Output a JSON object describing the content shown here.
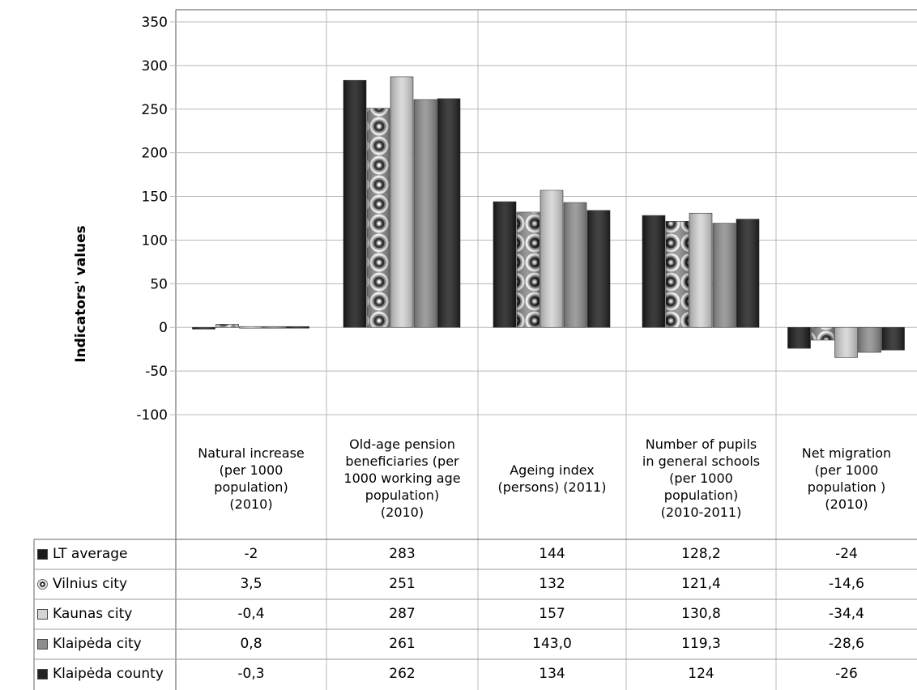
{
  "chart_data": {
    "type": "bar",
    "ylabel": "Indicators' values",
    "ylim": [
      -100,
      350
    ],
    "yticks": [
      350,
      300,
      250,
      200,
      150,
      100,
      50,
      0,
      -50,
      -100
    ],
    "grid": true,
    "legend": "table-below",
    "categories": [
      "Natural increase\n(per 1000\npopulation)\n(2010)",
      "Old-age pension\nbeneficiaries (per\n1000 working age\npopulation)\n(2010)",
      "Ageing index\n(persons) (2011)",
      "Number of pupils\nin general schools\n(per 1000\npopulation)\n(2010-2011)",
      "Net migration\n(per 1000\npopulation )\n(2010)"
    ],
    "series": [
      {
        "name": "LT average",
        "color": "#1a1a1a",
        "values": [
          -2,
          283,
          144,
          128.2,
          -24
        ],
        "labels": [
          "-2",
          "283",
          "144",
          "128,2",
          "-24"
        ]
      },
      {
        "name": "Vilnius city",
        "color": "#777777",
        "pattern": "rings",
        "values": [
          3.5,
          251,
          132,
          121.4,
          -14.6
        ],
        "labels": [
          "3,5",
          "251",
          "132",
          "121,4",
          "-14,6"
        ]
      },
      {
        "name": "Kaunas city",
        "color": "#d4d4d4",
        "values": [
          -0.4,
          287,
          157,
          130.8,
          -34.4
        ],
        "labels": [
          "-0,4",
          "287",
          "157",
          "130,8",
          "-34,4"
        ]
      },
      {
        "name": "Klaipėda city",
        "color": "#8e8e8e",
        "values": [
          0.8,
          261,
          143.0,
          119.3,
          -28.6
        ],
        "labels": [
          "0,8",
          "261",
          "143,0",
          "119,3",
          "-28,6"
        ]
      },
      {
        "name": "Klaipėda county",
        "color": "#222222",
        "values": [
          -0.3,
          262,
          134,
          124,
          -26
        ],
        "labels": [
          "-0,3",
          "262",
          "134",
          "124",
          "-26"
        ]
      }
    ]
  }
}
